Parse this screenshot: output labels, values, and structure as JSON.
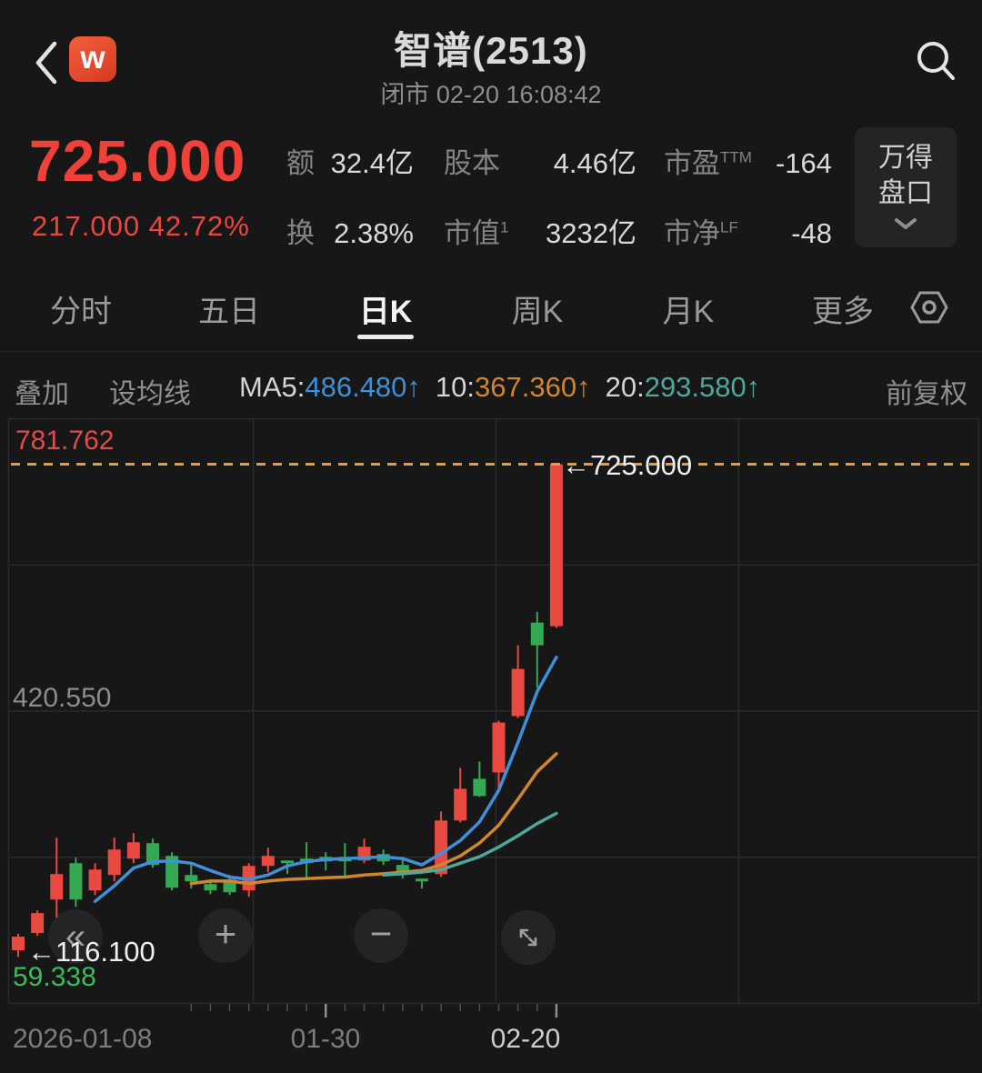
{
  "header": {
    "title": "智谱(2513)",
    "subtitle": "闭市 02-20 16:08:42",
    "logo_letter": "w"
  },
  "quote": {
    "price": "725.000",
    "change_line": "217.000 42.72%"
  },
  "stats": [
    {
      "label": "额",
      "sup": "",
      "value": "32.4亿"
    },
    {
      "label": "换",
      "sup": "",
      "value": "2.38%"
    },
    {
      "label": "股本",
      "sup": "",
      "value": "4.46亿"
    },
    {
      "label": "市值",
      "sup": "1",
      "value": "3232亿"
    },
    {
      "label": "市盈",
      "sup": "TTM",
      "value": "-164"
    },
    {
      "label": "市净",
      "sup": "LF",
      "value": "-48"
    }
  ],
  "panel_button": {
    "line1": "万得",
    "line2": "盘口"
  },
  "tabs": [
    {
      "label": "分时",
      "active": false
    },
    {
      "label": "五日",
      "active": false
    },
    {
      "label": "日K",
      "active": true
    },
    {
      "label": "周K",
      "active": false
    },
    {
      "label": "月K",
      "active": false
    },
    {
      "label": "更多",
      "active": false
    }
  ],
  "ma_bar": {
    "overlay": "叠加",
    "set_ma": "设均线",
    "items": [
      {
        "prefix": "MA5:",
        "value": "486.480↑",
        "color": "#3f90d8"
      },
      {
        "prefix": "10:",
        "value": "367.360↑",
        "color": "#d0852f"
      },
      {
        "prefix": "20:",
        "value": "293.580↑",
        "color": "#4fa79b"
      }
    ],
    "right": "前复权"
  },
  "chart_data": {
    "type": "candlestick",
    "ylim": [
      59.338,
      781.762
    ],
    "y_gridline_values": [
      781.762,
      601.156,
      420.55,
      239.944,
      59.338
    ],
    "x_gridlines": [
      9.5,
      278.5,
      545.5,
      812.5,
      1076.5
    ],
    "x_start": 20,
    "x_step": 21.14,
    "candle_width": 14,
    "colors": {
      "up": "#e84a42",
      "down": "#35a854",
      "grid": "#2a2a2a"
    },
    "candles": [
      {
        "open": 124.5,
        "close": 141.3,
        "low": 116.1,
        "high": 144.7
      },
      {
        "open": 145.8,
        "close": 170.4,
        "low": 142.4,
        "high": 173.7
      },
      {
        "open": 187.2,
        "close": 218.6,
        "low": 164.8,
        "high": 263.5
      },
      {
        "open": 232.1,
        "close": 187.2,
        "low": 178.2,
        "high": 238.8
      },
      {
        "open": 198.4,
        "close": 224.2,
        "low": 192.8,
        "high": 232.1
      },
      {
        "open": 217.5,
        "close": 248.9,
        "low": 209.6,
        "high": 263.5
      },
      {
        "open": 237.7,
        "close": 257.9,
        "low": 232.1,
        "high": 269.1
      },
      {
        "open": 256.8,
        "close": 229.9,
        "low": 226.5,
        "high": 262.4
      },
      {
        "open": 241.1,
        "close": 201.8,
        "low": 198.4,
        "high": 245.6
      },
      {
        "open": 217.5,
        "close": 209.6,
        "low": 200.7,
        "high": 232.1
      },
      {
        "open": 206.3,
        "close": 198.4,
        "low": 193.9,
        "high": 211.9
      },
      {
        "open": 211.9,
        "close": 196.2,
        "low": 192.8,
        "high": 217.5
      },
      {
        "open": 198.4,
        "close": 228.7,
        "low": 190.5,
        "high": 232.1
      },
      {
        "open": 228.7,
        "close": 241.1,
        "low": 220.9,
        "high": 251.2
      },
      {
        "open": 235.4,
        "close": 232.1,
        "low": 218.6,
        "high": 235.4
      },
      {
        "open": 237.7,
        "close": 232.1,
        "low": 213.0,
        "high": 257.9
      },
      {
        "open": 239.9,
        "close": 234.3,
        "low": 223.1,
        "high": 245.6
      },
      {
        "open": 239.9,
        "close": 234.3,
        "low": 215.2,
        "high": 256.8
      },
      {
        "open": 235.4,
        "close": 252.3,
        "low": 232.1,
        "high": 262.4
      },
      {
        "open": 243.3,
        "close": 234.3,
        "low": 229.9,
        "high": 248.9
      },
      {
        "open": 229.9,
        "close": 218.6,
        "low": 213.0,
        "high": 239.9
      },
      {
        "open": 213.0,
        "close": 209.6,
        "low": 200.7,
        "high": 213.0
      },
      {
        "open": 218.6,
        "close": 284.8,
        "low": 215.2,
        "high": 296.0
      },
      {
        "open": 284.8,
        "close": 324.0,
        "low": 282.5,
        "high": 349.8
      },
      {
        "open": 336.4,
        "close": 315.1,
        "low": 314.0,
        "high": 357.6
      },
      {
        "open": 344.2,
        "close": 405.9,
        "low": 324.0,
        "high": 408.2
      },
      {
        "open": 413.8,
        "close": 472.1,
        "low": 411.5,
        "high": 501.3
      },
      {
        "open": 529.3,
        "close": 501.3,
        "low": 448.6,
        "high": 542.8
      },
      {
        "open": 524.9,
        "close": 725.0,
        "low": 522.7,
        "high": 725.0
      }
    ],
    "series": [
      {
        "name": "MA5",
        "color": "#3f90d8",
        "start_index": 4,
        "values": [
          185,
          204,
          226,
          234,
          235,
          232,
          223,
          215,
          212,
          217.5,
          228.7,
          234,
          236.5,
          237.7,
          238.8,
          239.9,
          237.7,
          230,
          244,
          260,
          283,
          322,
          381,
          444,
          486.48
        ]
      },
      {
        "name": "MA10",
        "color": "#d0852f",
        "start_index": 9,
        "values": [
          207,
          210,
          210,
          207,
          210,
          212,
          213,
          214,
          215,
          217.5,
          219,
          221,
          223,
          230,
          241,
          257,
          279,
          311,
          345,
          367.36
        ]
      },
      {
        "name": "MA20",
        "color": "#4fa79b",
        "start_index": 19,
        "values": [
          217.5,
          219,
          221,
          224,
          232,
          240,
          252,
          266,
          281,
          293.58
        ]
      }
    ],
    "current_price_line": {
      "value": 725.0,
      "color": "#ed9a3d"
    },
    "ticks": {
      "from": 9,
      "to": 28,
      "long": [
        16,
        28
      ]
    },
    "annotations": {
      "top_label": {
        "text": "781.762",
        "color": "#e14b4b"
      },
      "mid_label": {
        "text": "420.550",
        "color": "#8c8c8c"
      },
      "bottom_label": {
        "text": "59.338",
        "color": "#3dbb5c"
      },
      "low_marker": {
        "text": "←116.100"
      },
      "last_marker": {
        "text": "←725.000"
      }
    },
    "x_labels": [
      {
        "text": "2026-01-08",
        "bright": false
      },
      {
        "text": "01-30",
        "bright": false
      },
      {
        "text": "02-20",
        "bright": true
      }
    ]
  },
  "controls": {
    "rewind": "«",
    "zoom_in": "+",
    "zoom_out": "−"
  }
}
